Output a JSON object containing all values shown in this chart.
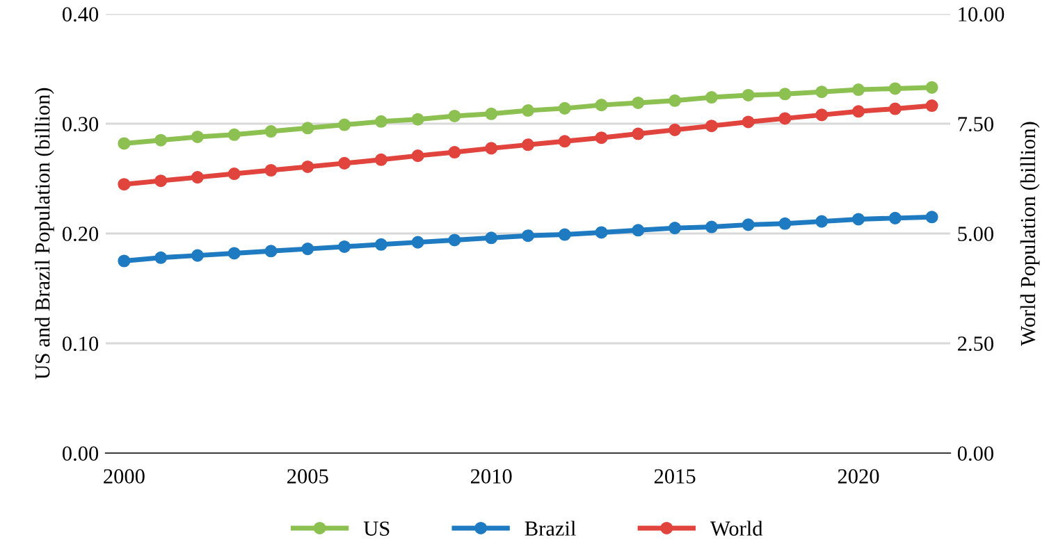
{
  "chart_data": {
    "type": "line",
    "ylabel": "US and Brazil Population (billion)",
    "y2label": "World Population (billion)",
    "categories": [
      "2000",
      null,
      null,
      null,
      null,
      "2005",
      null,
      null,
      null,
      null,
      "2010",
      null,
      null,
      null,
      null,
      "2015",
      null,
      null,
      null,
      null,
      "2020",
      null,
      null
    ],
    "series": [
      {
        "name": "US",
        "color": "#8cc152",
        "values": [
          0.282,
          0.285,
          0.288,
          0.29,
          0.293,
          0.296,
          0.299,
          0.302,
          0.304,
          0.307,
          0.309,
          0.312,
          0.314,
          0.317,
          0.319,
          0.321,
          0.324,
          0.326,
          0.327,
          0.329,
          0.331,
          0.332,
          0.333
        ]
      },
      {
        "name": "Brazil",
        "color": "#1f7bc1",
        "values": [
          0.175,
          0.178,
          0.18,
          0.182,
          0.184,
          0.186,
          0.188,
          0.19,
          0.192,
          0.194,
          0.196,
          0.198,
          0.199,
          0.201,
          0.203,
          0.205,
          0.206,
          0.208,
          0.209,
          0.211,
          0.213,
          0.214,
          0.215
        ]
      },
      {
        "name": "World",
        "color": "#e0443c",
        "axis": "y2",
        "values": [
          6.12,
          6.2,
          6.28,
          6.36,
          6.44,
          6.52,
          6.6,
          6.68,
          6.77,
          6.85,
          6.94,
          7.02,
          7.1,
          7.18,
          7.27,
          7.36,
          7.45,
          7.54,
          7.62,
          7.7,
          7.78,
          7.84,
          7.91
        ]
      }
    ],
    "ylim": [
      0,
      0.4
    ],
    "yticks": [
      {
        "value": 0,
        "label": "0.00"
      },
      {
        "value": 0.1,
        "label": "0.10"
      },
      {
        "value": 0.2,
        "label": "0.20"
      },
      {
        "value": 0.3,
        "label": "0.30"
      },
      {
        "value": 0.4,
        "label": "0.40"
      }
    ],
    "y2lim": [
      0,
      10
    ],
    "y2ticks": [
      {
        "value": 0,
        "label": "0.00"
      },
      {
        "value": 2.5,
        "label": "2.50"
      },
      {
        "value": 5,
        "label": "5.00"
      },
      {
        "value": 7.5,
        "label": "7.50"
      },
      {
        "value": 10,
        "label": "10.00"
      }
    ],
    "grid": "y",
    "legend": "bottom",
    "marker": "circle",
    "line_style": "solid"
  }
}
